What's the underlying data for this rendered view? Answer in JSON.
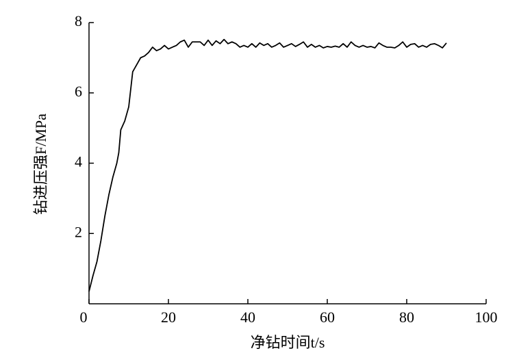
{
  "chart_data": {
    "type": "line",
    "x_label": "净钻时间t/s",
    "y_label": "钻进压强F/MPa",
    "x": [
      0,
      1,
      2,
      3,
      4,
      5,
      6,
      7,
      7.5,
      8,
      9,
      10,
      11,
      12,
      13,
      14,
      15,
      16,
      17,
      18,
      19,
      20,
      21,
      22,
      23,
      24,
      25,
      26,
      27,
      28,
      29,
      30,
      31,
      32,
      33,
      34,
      35,
      36,
      37,
      38,
      39,
      40,
      41,
      42,
      43,
      44,
      45,
      46,
      47,
      48,
      49,
      50,
      51,
      52,
      53,
      54,
      55,
      56,
      57,
      58,
      59,
      60,
      61,
      62,
      63,
      64,
      65,
      66,
      67,
      68,
      69,
      70,
      71,
      72,
      73,
      74,
      75,
      76,
      77,
      78,
      79,
      80,
      81,
      82,
      83,
      84,
      85,
      86,
      87,
      88,
      89,
      90
    ],
    "series": [
      {
        "color": "#000000",
        "values": [
          0.35,
          0.8,
          1.2,
          1.8,
          2.5,
          3.1,
          3.6,
          4.0,
          4.3,
          4.95,
          5.2,
          5.6,
          6.6,
          6.8,
          7.0,
          7.05,
          7.15,
          7.3,
          7.2,
          7.25,
          7.35,
          7.25,
          7.3,
          7.35,
          7.45,
          7.5,
          7.3,
          7.45,
          7.45,
          7.45,
          7.35,
          7.5,
          7.35,
          7.48,
          7.4,
          7.52,
          7.4,
          7.45,
          7.4,
          7.3,
          7.35,
          7.3,
          7.4,
          7.3,
          7.42,
          7.35,
          7.4,
          7.3,
          7.35,
          7.42,
          7.3,
          7.35,
          7.4,
          7.32,
          7.38,
          7.45,
          7.3,
          7.38,
          7.3,
          7.35,
          7.28,
          7.32,
          7.3,
          7.33,
          7.3,
          7.4,
          7.3,
          7.45,
          7.35,
          7.3,
          7.35,
          7.3,
          7.32,
          7.28,
          7.42,
          7.35,
          7.3,
          7.3,
          7.28,
          7.35,
          7.45,
          7.3,
          7.38,
          7.4,
          7.3,
          7.35,
          7.3,
          7.38,
          7.4,
          7.35,
          7.28,
          7.42
        ]
      }
    ],
    "xlim": [
      0,
      100
    ],
    "xticks": [
      0,
      20,
      40,
      60,
      80,
      100
    ],
    "ylim": [
      0,
      8
    ],
    "yticks": [
      2,
      4,
      6,
      8
    ]
  }
}
